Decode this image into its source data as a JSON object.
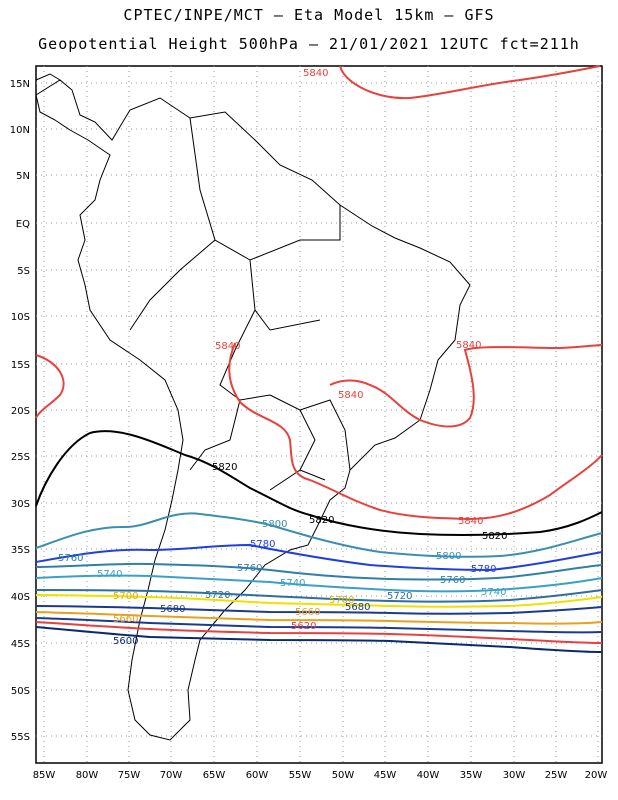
{
  "title_line1": "CPTEC/INPE/MCT –  Eta Model 15km – GFS",
  "title_line2": "Geopotential Height 500hPa – 21/01/2021 12UTC fct=211h",
  "lat_labels": [
    "15N",
    "10N",
    "5N",
    "EQ",
    "5S",
    "10S",
    "15S",
    "20S",
    "25S",
    "30S",
    "35S",
    "40S",
    "45S",
    "50S",
    "55S"
  ],
  "lon_labels": [
    "85W",
    "80W",
    "75W",
    "70W",
    "65W",
    "60W",
    "55W",
    "50W",
    "45W",
    "40W",
    "35W",
    "30W",
    "25W",
    "20W"
  ],
  "contour_colors": {
    "5840": "#e8413c",
    "5820": "#000000",
    "5800": "#3a8fb0",
    "5780": "#1f3fe0",
    "5760": "#2f7fa8",
    "5740": "#3aa0c8",
    "5720": "#2e6fa0",
    "5700": "#f0e000",
    "5680": "#1a3a90",
    "5660": "#e8a020",
    "5620": "#e84040",
    "5600": "#0a2a70"
  },
  "contour_labels": [
    {
      "text": "5840",
      "color": "#e8413c"
    },
    {
      "text": "5840",
      "color": "#e8413c"
    },
    {
      "text": "5840",
      "color": "#e8413c"
    },
    {
      "text": "5840",
      "color": "#e8413c"
    },
    {
      "text": "5840",
      "color": "#e8413c"
    },
    {
      "text": "5820",
      "color": "#000000"
    },
    {
      "text": "5820",
      "color": "#000000"
    },
    {
      "text": "5820",
      "color": "#000000"
    },
    {
      "text": "5800",
      "color": "#3a8fb0"
    },
    {
      "text": "5800",
      "color": "#3a8fb0"
    },
    {
      "text": "5780",
      "color": "#1f3fe0"
    },
    {
      "text": "5780",
      "color": "#1f3fe0"
    },
    {
      "text": "5760",
      "color": "#2f7fa8"
    },
    {
      "text": "5760",
      "color": "#2f7fa8"
    },
    {
      "text": "5760",
      "color": "#2f7fa8"
    },
    {
      "text": "5740",
      "color": "#3aa0c8"
    },
    {
      "text": "5740",
      "color": "#3aa0c8"
    },
    {
      "text": "5740",
      "color": "#3aa0c8"
    },
    {
      "text": "5720",
      "color": "#2e6fa0"
    },
    {
      "text": "5720",
      "color": "#2e6fa0"
    },
    {
      "text": "5700",
      "color": "#e0b000"
    },
    {
      "text": "5700",
      "color": "#e0b000"
    },
    {
      "text": "5680",
      "color": "#1a3a90"
    },
    {
      "text": "5680",
      "color": "#1a3a90"
    },
    {
      "text": "5660",
      "color": "#e8a020"
    },
    {
      "text": "5660",
      "color": "#e8a020"
    },
    {
      "text": "5620",
      "color": "#e84040"
    },
    {
      "text": "5600",
      "color": "#0a2a70"
    }
  ]
}
